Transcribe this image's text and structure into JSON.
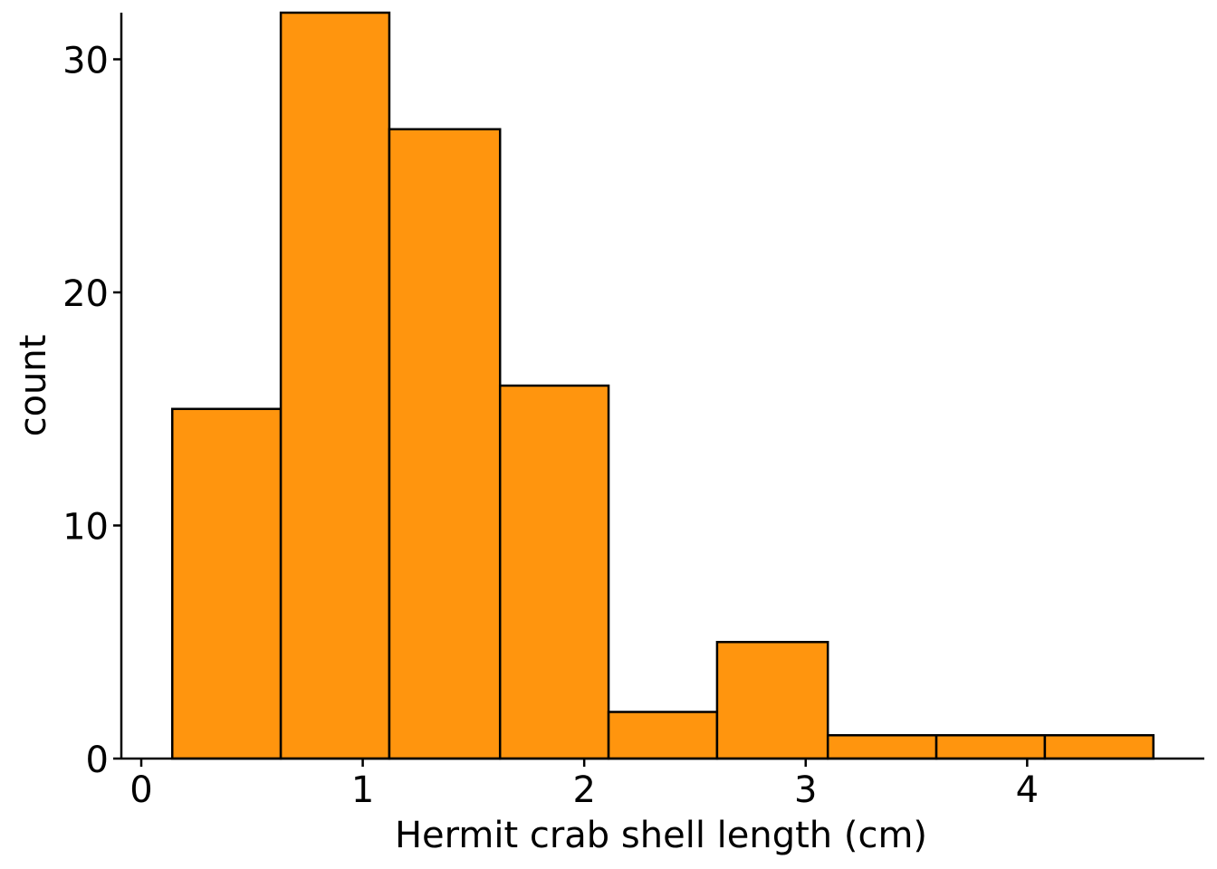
{
  "chart_data": {
    "type": "bar",
    "subtype": "histogram",
    "title": "",
    "xlabel": "Hermit crab shell length (cm)",
    "ylabel": "count",
    "bins": [
      {
        "x0": 0.14,
        "x1": 0.63,
        "count": 15
      },
      {
        "x0": 0.63,
        "x1": 1.12,
        "count": 32
      },
      {
        "x0": 1.12,
        "x1": 1.62,
        "count": 27
      },
      {
        "x0": 1.62,
        "x1": 2.11,
        "count": 16
      },
      {
        "x0": 2.11,
        "x1": 2.6,
        "count": 2
      },
      {
        "x0": 2.6,
        "x1": 3.1,
        "count": 5
      },
      {
        "x0": 3.1,
        "x1": 3.59,
        "count": 1
      },
      {
        "x0": 3.59,
        "x1": 4.08,
        "count": 1
      },
      {
        "x0": 4.08,
        "x1": 4.57,
        "count": 1
      }
    ],
    "xlim": [
      -0.09,
      4.8
    ],
    "ylim": [
      0,
      32
    ],
    "xticks": [
      0,
      1,
      2,
      3,
      4
    ],
    "xtick_labels": [
      "0",
      "1",
      "2",
      "3",
      "4"
    ],
    "yticks": [
      0,
      10,
      20,
      30
    ],
    "ytick_labels": [
      "0",
      "10",
      "20",
      "30"
    ],
    "grid": false,
    "legend": "none",
    "colors": {
      "bar_fill": "#ff950e",
      "bar_stroke": "#000000",
      "axis": "#000000",
      "background": "#ffffff"
    }
  }
}
